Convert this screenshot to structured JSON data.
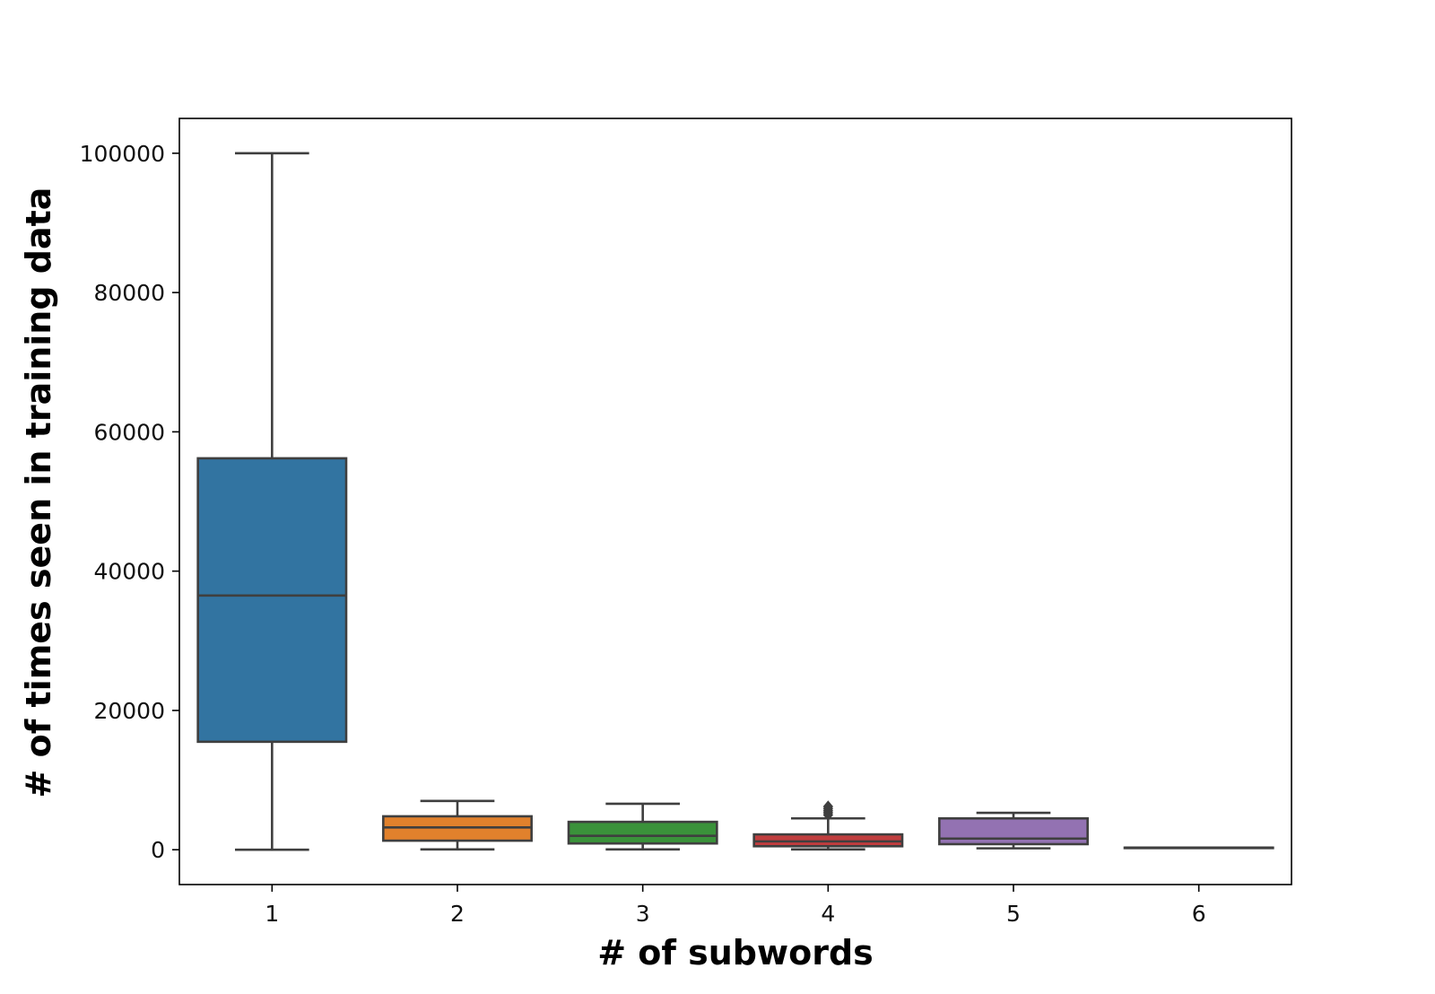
{
  "chart_data": {
    "type": "box",
    "title": "",
    "xlabel": "# of subwords",
    "ylabel": "# of times seen in training data",
    "categories": [
      "1",
      "2",
      "3",
      "4",
      "5",
      "6"
    ],
    "ylim": [
      -5000,
      105000
    ],
    "yticks": [
      0,
      20000,
      40000,
      60000,
      80000,
      100000
    ],
    "ytick_labels": [
      "0",
      "20000",
      "40000",
      "60000",
      "80000",
      "100000"
    ],
    "grid": false,
    "legend": "none",
    "boxes": [
      {
        "category": "1",
        "color": "#3274a1",
        "whisker_low": 0,
        "q1": 15500,
        "median": 36500,
        "q3": 56200,
        "whisker_high": 100000,
        "outliers": []
      },
      {
        "category": "2",
        "color": "#e1812c",
        "whisker_low": 50,
        "q1": 1300,
        "median": 3200,
        "q3": 4800,
        "whisker_high": 7000,
        "outliers": []
      },
      {
        "category": "3",
        "color": "#3a923a",
        "whisker_low": 50,
        "q1": 900,
        "median": 2000,
        "q3": 4000,
        "whisker_high": 6600,
        "outliers": []
      },
      {
        "category": "4",
        "color": "#c03d3e",
        "whisker_low": 50,
        "q1": 500,
        "median": 1200,
        "q3": 2200,
        "whisker_high": 4500,
        "outliers": [
          5000,
          5300,
          5600,
          5900,
          6200
        ]
      },
      {
        "category": "5",
        "color": "#9372b2",
        "whisker_low": 200,
        "q1": 800,
        "median": 1600,
        "q3": 4500,
        "whisker_high": 5300,
        "outliers": []
      },
      {
        "category": "6",
        "color": "#845b53",
        "whisker_low": 300,
        "q1": 300,
        "median": 300,
        "q3": 300,
        "whisker_high": 300,
        "outliers": []
      }
    ]
  }
}
